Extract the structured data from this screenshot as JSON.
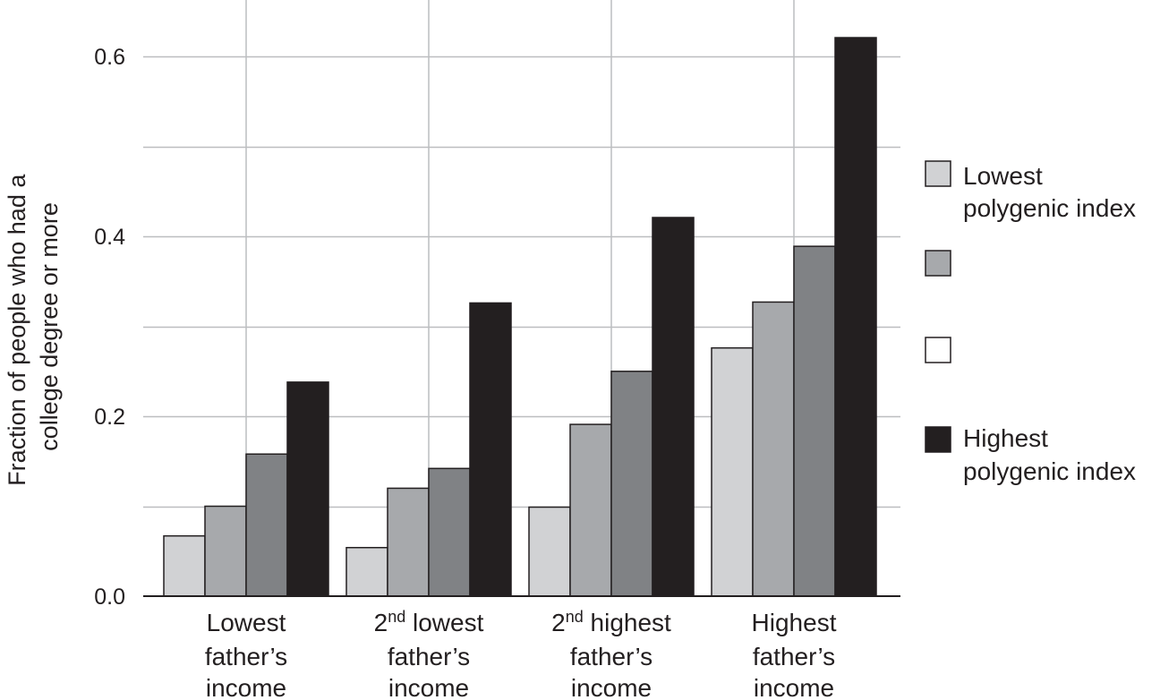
{
  "chart_data": {
    "type": "bar",
    "title": "",
    "ylabel": [
      "Fraction of people who had a",
      "college degree or more"
    ],
    "xlabel": "",
    "ylim": [
      0,
      0.63
    ],
    "yticks": [
      0.0,
      0.2,
      0.4,
      0.6
    ],
    "ytick_labels": [
      "0.0",
      "0.2",
      "0.4",
      "0.6"
    ],
    "grid": true,
    "legend_position": "right",
    "categories": [
      {
        "lines": [
          "Lowest",
          "father’s",
          "income"
        ],
        "sup": ""
      },
      {
        "lines": [
          "2",
          "father’s",
          "income"
        ],
        "sup": "nd",
        "rest": " lowest"
      },
      {
        "lines": [
          "2",
          "father’s",
          "income"
        ],
        "sup": "nd",
        "rest": " highest"
      },
      {
        "lines": [
          "Highest",
          "father’s",
          "income"
        ],
        "sup": ""
      }
    ],
    "series": [
      {
        "name": "Lowest polygenic index",
        "legend_lines": [
          "Lowest",
          "polygenic index"
        ],
        "color": "#d1d2d4",
        "values": [
          0.067,
          0.054,
          0.099,
          0.276
        ]
      },
      {
        "name": "",
        "legend_lines": [],
        "color": "#a7a9ac",
        "values": [
          0.1,
          0.12,
          0.191,
          0.327
        ]
      },
      {
        "name": "",
        "legend_lines": [],
        "color": "#808285",
        "values": [
          0.158,
          0.142,
          0.25,
          0.389
        ]
      },
      {
        "name": "Highest polygenic index",
        "legend_lines": [
          "Highest",
          "polygenic index"
        ],
        "color": "#231f20",
        "values": [
          0.238,
          0.326,
          0.421,
          0.621
        ]
      }
    ],
    "legend_swatches": [
      "#d1d2d4",
      "#a7a9ac",
      "#ffffff",
      "#231f20"
    ]
  }
}
